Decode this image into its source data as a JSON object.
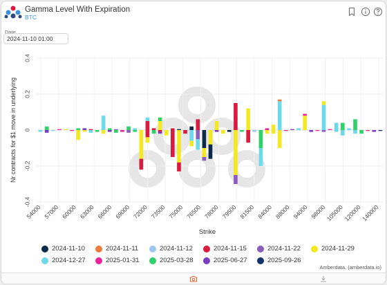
{
  "header": {
    "title": "Gamma Level With Expiration",
    "subtitle": "BTC",
    "bookmark_icon": "bookmark-icon",
    "info_icon": "info-icon",
    "help_icon": "help-icon"
  },
  "date_filter": {
    "label": "Date",
    "value": "2024-11-10 01:00"
  },
  "credit": "Amberdata, (amberdata.io)",
  "footer": {
    "left_icon": "camera-icon",
    "right_icon": "download-icon"
  },
  "colors": {
    "2024-11-10": "#0d2a4a",
    "2024-11-11": "#f07a3c",
    "2024-11-12": "#9ec7ee",
    "2024-11-15": "#d81b3f",
    "2024-11-22": "#8c5cbf",
    "2024-11-29": "#f3e824",
    "2024-12-27": "#6ed9ea",
    "2025-01-31": "#e8249a",
    "2025-03-28": "#2fd16b",
    "2025-06-27": "#7a3dbf",
    "2025-09-26": "#14336b",
    "accent": "#3d8fe0"
  },
  "chart_data": {
    "type": "bar",
    "stacked": true,
    "title": "",
    "xlabel": "Strike",
    "ylabel": "Nr contracts for $1 move in underlying",
    "ylim": [
      -0.4,
      0.4
    ],
    "yticks": [
      "0.4",
      "0.2",
      "0",
      "-0.2",
      "-0.4"
    ],
    "grid": true,
    "legend_position": "bottom",
    "x_tick_labels": [
      "54000",
      "57000",
      "60000",
      "63000",
      "66000",
      "69000",
      "72000",
      "73500",
      "75000",
      "76500",
      "78000",
      "79500",
      "81500",
      "84000",
      "88000",
      "94000",
      "98000",
      "105000",
      "120000",
      "140000"
    ],
    "series_names": [
      "2024-11-10",
      "2024-11-11",
      "2024-11-12",
      "2024-11-15",
      "2024-11-22",
      "2024-11-29",
      "2024-12-27",
      "2025-01-31",
      "2025-03-28",
      "2025-06-27",
      "2025-09-26"
    ],
    "bars": [
      {
        "index": 0,
        "segments": [
          {
            "s": "2024-12-27",
            "v": -0.01
          }
        ]
      },
      {
        "index": 1,
        "segments": [
          {
            "s": "2025-03-28",
            "v": 0.02
          },
          {
            "s": "2025-06-27",
            "v": -0.015
          }
        ]
      },
      {
        "index": 2,
        "segments": [
          {
            "s": "2024-12-27",
            "v": -0.005
          }
        ]
      },
      {
        "index": 3,
        "segments": [
          {
            "s": "2025-01-31",
            "v": 0.005
          }
        ]
      },
      {
        "index": 4,
        "segments": [
          {
            "s": "2024-11-29",
            "v": 0.005
          }
        ]
      },
      {
        "index": 5,
        "segments": [
          {
            "s": "2025-01-31",
            "v": -0.005
          }
        ]
      },
      {
        "index": 6,
        "segments": [
          {
            "s": "2025-03-28",
            "v": 0.01
          },
          {
            "s": "2024-11-29",
            "v": -0.055
          }
        ]
      },
      {
        "index": 7,
        "segments": [
          {
            "s": "2025-06-27",
            "v": 0.01
          },
          {
            "s": "2024-11-29",
            "v": -0.01
          }
        ]
      },
      {
        "index": 8,
        "segments": [
          {
            "s": "2024-11-15",
            "v": 0.005
          },
          {
            "s": "2024-12-27",
            "v": -0.015
          }
        ]
      },
      {
        "index": 9,
        "segments": [
          {
            "s": "2025-03-28",
            "v": -0.01
          }
        ]
      },
      {
        "index": 10,
        "segments": [
          {
            "s": "2024-12-27",
            "v": 0.08
          },
          {
            "s": "2024-11-29",
            "v": -0.02
          }
        ]
      },
      {
        "index": 11,
        "segments": [
          {
            "s": "2025-03-28",
            "v": 0.01
          },
          {
            "s": "2025-06-27",
            "v": -0.01
          }
        ]
      },
      {
        "index": 12,
        "segments": [
          {
            "s": "2024-11-22",
            "v": 0.005
          },
          {
            "s": "2025-03-28",
            "v": -0.015
          }
        ]
      },
      {
        "index": 13,
        "segments": [
          {
            "s": "2025-01-31",
            "v": -0.01
          }
        ]
      },
      {
        "index": 14,
        "segments": [
          {
            "s": "2025-03-28",
            "v": 0.02
          },
          {
            "s": "2024-11-22",
            "v": -0.015
          }
        ]
      },
      {
        "index": 15,
        "segments": [
          {
            "s": "2024-12-27",
            "v": 0.01
          },
          {
            "s": "2025-03-28",
            "v": -0.01
          }
        ]
      },
      {
        "index": 16,
        "segments": [
          {
            "s": "2024-11-29",
            "v": -0.16
          },
          {
            "s": "2024-11-15",
            "v": -0.06
          }
        ]
      },
      {
        "index": 17,
        "segments": [
          {
            "s": "2024-11-15",
            "v": 0.05
          },
          {
            "s": "2024-12-27",
            "v": 0.02
          },
          {
            "s": "2024-11-15",
            "v": -0.04
          },
          {
            "s": "2024-11-29",
            "v": -0.03
          }
        ]
      },
      {
        "index": 18,
        "segments": [
          {
            "s": "2024-11-15",
            "v": 0.01
          },
          {
            "s": "2025-03-28",
            "v": -0.02
          }
        ]
      },
      {
        "index": 19,
        "segments": [
          {
            "s": "2024-11-29",
            "v": 0.05
          },
          {
            "s": "2025-03-28",
            "v": 0.02
          },
          {
            "s": "2024-11-15",
            "v": -0.01
          },
          {
            "s": "2025-06-27",
            "v": -0.01
          }
        ]
      },
      {
        "index": 20,
        "segments": [
          {
            "s": "2024-11-29",
            "v": -0.03
          }
        ]
      },
      {
        "index": 21,
        "segments": [
          {
            "s": "2024-11-15",
            "v": 0.01
          },
          {
            "s": "2024-11-15",
            "v": -0.15
          }
        ]
      },
      {
        "index": 22,
        "segments": [
          {
            "s": "2024-11-10",
            "v": 0.005
          },
          {
            "s": "2024-11-29",
            "v": -0.18
          },
          {
            "s": "2024-11-15",
            "v": -0.05
          }
        ]
      },
      {
        "index": 23,
        "segments": [
          {
            "s": "2024-11-15",
            "v": -0.02
          }
        ]
      },
      {
        "index": 24,
        "segments": [
          {
            "s": "2024-11-10",
            "v": 0.02
          },
          {
            "s": "2024-12-27",
            "v": -0.06
          },
          {
            "s": "2024-11-29",
            "v": -0.03
          }
        ]
      },
      {
        "index": 25,
        "segments": [
          {
            "s": "2024-11-15",
            "v": 0.06
          },
          {
            "s": "2024-11-22",
            "v": -0.05
          },
          {
            "s": "2024-12-27",
            "v": -0.06
          }
        ]
      },
      {
        "index": 26,
        "segments": [
          {
            "s": "2024-11-10",
            "v": -0.1
          },
          {
            "s": "2024-11-29",
            "v": -0.05
          },
          {
            "s": "2024-11-22",
            "v": -0.02
          }
        ]
      },
      {
        "index": 27,
        "segments": [
          {
            "s": "2024-11-29",
            "v": -0.08
          },
          {
            "s": "2024-11-10",
            "v": -0.08
          }
        ]
      },
      {
        "index": 28,
        "segments": [
          {
            "s": "2024-11-29",
            "v": 0.05
          },
          {
            "s": "2025-06-27",
            "v": -0.01
          }
        ]
      },
      {
        "index": 29,
        "segments": [
          {
            "s": "2024-11-29",
            "v": -0.02
          }
        ]
      },
      {
        "index": 30,
        "segments": [
          {
            "s": "2024-11-10",
            "v": -0.01
          }
        ]
      },
      {
        "index": 31,
        "segments": [
          {
            "s": "2024-11-15",
            "v": 0.15
          },
          {
            "s": "2024-11-29",
            "v": -0.25
          },
          {
            "s": "2024-11-22",
            "v": -0.05
          }
        ]
      },
      {
        "index": 32,
        "segments": [
          {
            "s": "2025-03-28",
            "v": -0.01
          }
        ]
      },
      {
        "index": 33,
        "segments": [
          {
            "s": "2024-11-29",
            "v": 0.12
          },
          {
            "s": "2024-11-15",
            "v": -0.07
          }
        ]
      },
      {
        "index": 34,
        "segments": [
          {
            "s": "2024-11-12",
            "v": -0.01
          }
        ]
      },
      {
        "index": 35,
        "segments": [
          {
            "s": "2025-03-28",
            "v": -0.1
          },
          {
            "s": "2024-12-27",
            "v": -0.1
          }
        ]
      },
      {
        "index": 36,
        "segments": [
          {
            "s": "2025-01-31",
            "v": 0.01
          },
          {
            "s": "2024-11-29",
            "v": -0.02
          }
        ]
      },
      {
        "index": 37,
        "segments": [
          {
            "s": "2024-11-29",
            "v": 0.03
          },
          {
            "s": "2024-11-29",
            "v": -0.02
          }
        ]
      },
      {
        "index": 38,
        "segments": [
          {
            "s": "2024-12-27",
            "v": 0.16
          },
          {
            "s": "2024-11-11",
            "v": 0.01
          },
          {
            "s": "2024-11-29",
            "v": -0.1
          }
        ]
      },
      {
        "index": 39,
        "segments": [
          {
            "s": "2025-01-31",
            "v": -0.005
          }
        ]
      },
      {
        "index": 40,
        "segments": [
          {
            "s": "2025-06-27",
            "v": 0.005
          }
        ]
      },
      {
        "index": 41,
        "segments": [
          {
            "s": "2024-12-27",
            "v": 0.01
          }
        ]
      },
      {
        "index": 42,
        "segments": [
          {
            "s": "2024-11-29",
            "v": 0.08
          },
          {
            "s": "2025-01-31",
            "v": 0.01
          }
        ]
      },
      {
        "index": 43,
        "segments": [
          {
            "s": "2025-06-27",
            "v": -0.01
          }
        ]
      },
      {
        "index": 44,
        "segments": [
          {
            "s": "2025-01-31",
            "v": -0.005
          }
        ]
      },
      {
        "index": 45,
        "segments": [
          {
            "s": "2024-12-27",
            "v": 0.14
          },
          {
            "s": "2024-11-29",
            "v": 0.02
          },
          {
            "s": "2024-11-22",
            "v": -0.01
          }
        ]
      },
      {
        "index": 46,
        "segments": [
          {
            "s": "2025-01-31",
            "v": 0.005
          }
        ]
      },
      {
        "index": 47,
        "segments": [
          {
            "s": "2024-12-27",
            "v": 0.04
          },
          {
            "s": "2024-12-27",
            "v": -0.01
          }
        ]
      },
      {
        "index": 48,
        "segments": [
          {
            "s": "2025-03-28",
            "v": 0.04
          },
          {
            "s": "2024-12-27",
            "v": -0.03
          }
        ]
      },
      {
        "index": 49,
        "segments": [
          {
            "s": "2024-12-27",
            "v": 0.01
          }
        ]
      },
      {
        "index": 50,
        "segments": [
          {
            "s": "2025-03-28",
            "v": 0.06
          },
          {
            "s": "2024-12-27",
            "v": -0.02
          }
        ]
      },
      {
        "index": 51,
        "segments": [
          {
            "s": "2025-03-28",
            "v": -0.02
          }
        ]
      },
      {
        "index": 52,
        "segments": [
          {
            "s": "2025-01-31",
            "v": -0.005
          }
        ]
      },
      {
        "index": 53,
        "segments": [
          {
            "s": "2025-06-27",
            "v": -0.01
          }
        ]
      },
      {
        "index": 54,
        "segments": [
          {
            "s": "2025-09-26",
            "v": -0.005
          }
        ]
      }
    ]
  },
  "legend": [
    {
      "label": "2024-11-10",
      "color": "#0d2a4a"
    },
    {
      "label": "2024-11-11",
      "color": "#f07a3c"
    },
    {
      "label": "2024-11-12",
      "color": "#9ec7ee"
    },
    {
      "label": "2024-11-15",
      "color": "#d81b3f"
    },
    {
      "label": "2024-11-22",
      "color": "#8c5cbf"
    },
    {
      "label": "2024-11-29",
      "color": "#f3e824"
    },
    {
      "label": "2024-12-27",
      "color": "#6ed9ea"
    },
    {
      "label": "2025-01-31",
      "color": "#e8249a"
    },
    {
      "label": "2025-03-28",
      "color": "#2fd16b"
    },
    {
      "label": "2025-06-27",
      "color": "#7a3dbf"
    },
    {
      "label": "2025-09-26",
      "color": "#14336b"
    }
  ]
}
